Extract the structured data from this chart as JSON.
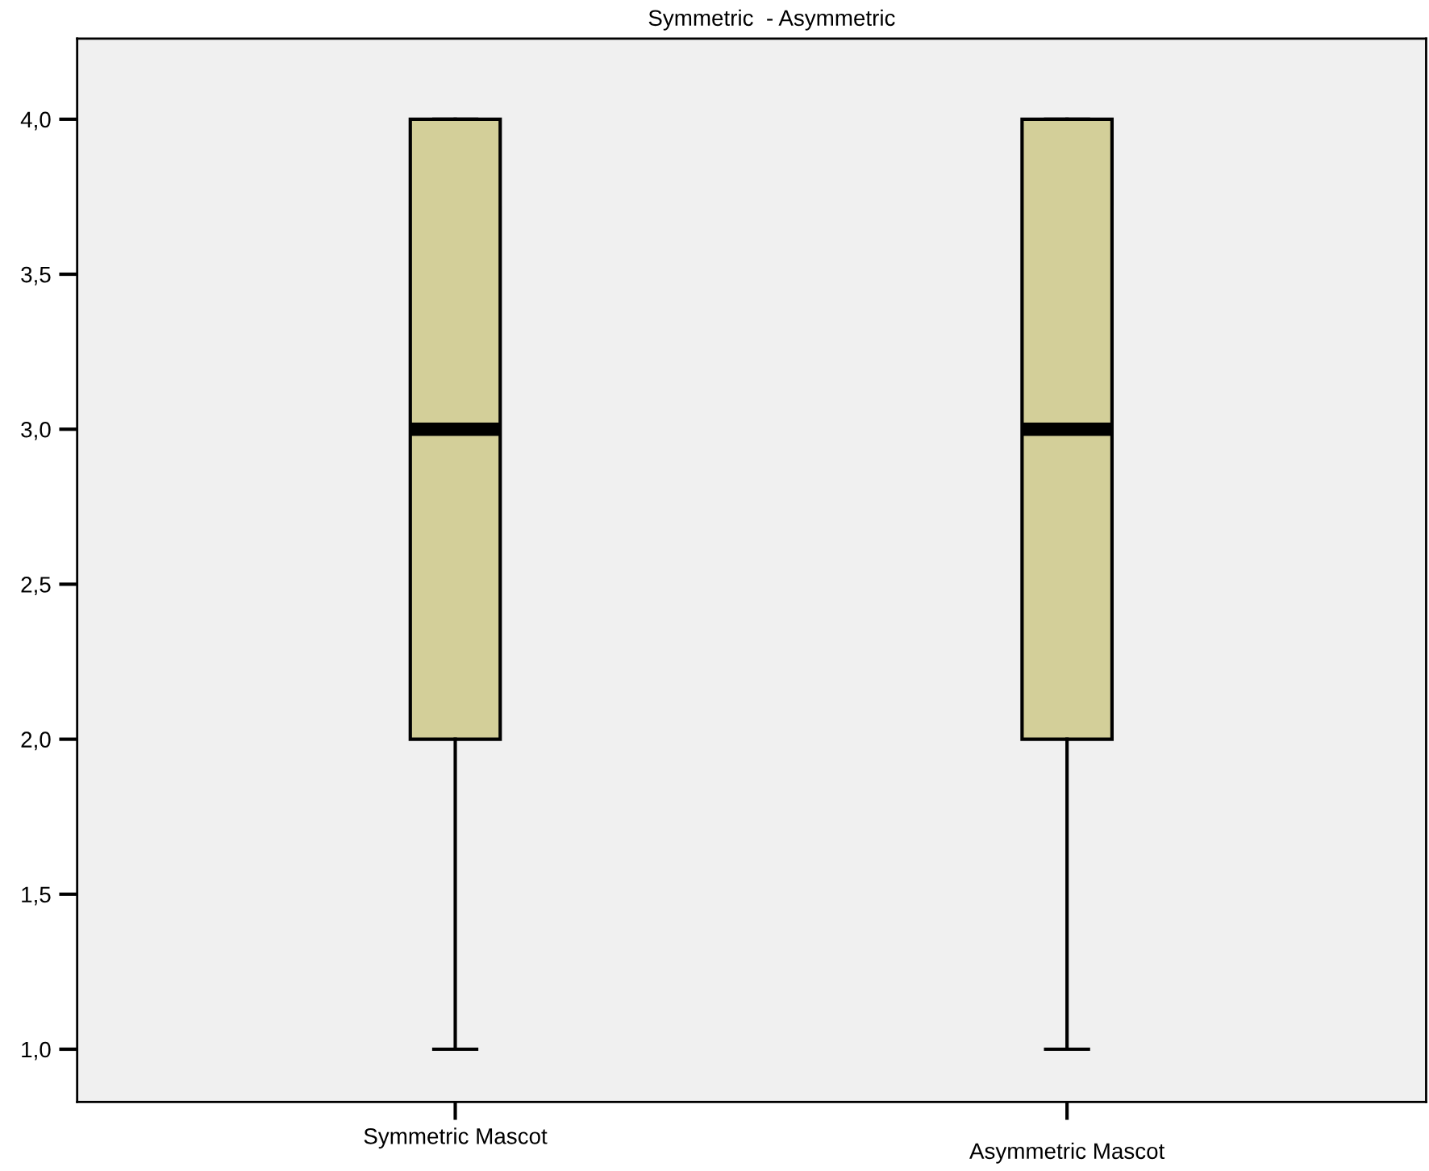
{
  "chart_data": {
    "type": "box",
    "title": "Symmetric  - Asymmetric",
    "categories": [
      "Symmetric Mascot",
      "Asymmetric Mascot"
    ],
    "boxes": [
      {
        "low": 1,
        "q1": 2,
        "median": 3,
        "q3": 4,
        "high": 4
      },
      {
        "low": 1,
        "q1": 2,
        "median": 3,
        "q3": 4,
        "high": 4
      }
    ],
    "color": "#d3cf99",
    "ylim": [
      0.83,
      4.26
    ],
    "yticks": [
      {
        "value": 1,
        "label": "1,0"
      },
      {
        "value": 1.5,
        "label": "1,5"
      },
      {
        "value": 2,
        "label": "2,0"
      },
      {
        "value": 2.5,
        "label": "2,5"
      },
      {
        "value": 3,
        "label": "3,0"
      },
      {
        "value": 3.5,
        "label": "3,5"
      },
      {
        "value": 4,
        "label": "4,0"
      }
    ],
    "grid": false
  }
}
